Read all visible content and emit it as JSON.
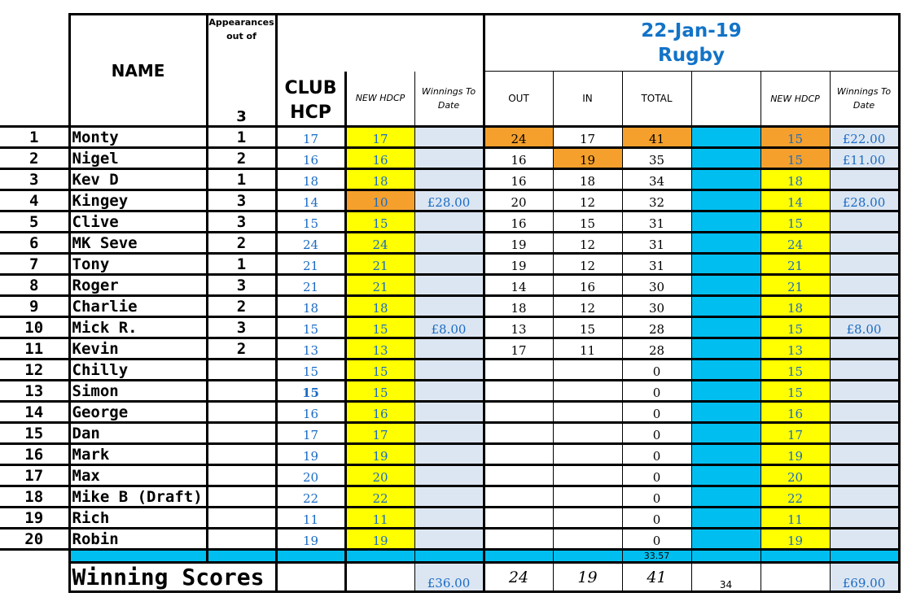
{
  "header": {
    "name_label": "NAME",
    "appearances_label": "Appearances out of",
    "appearances_total": "3",
    "club_hcp_label": "CLUB HCP",
    "new_hdcp_label": "NEW HDCP",
    "winnings_label": "Winnings To Date",
    "date": "22-Jan-19",
    "venue": "Rugby",
    "out_label": "OUT",
    "in_label": "IN",
    "total_label": "TOTAL",
    "new_hdcp_label2": "NEW HDCP",
    "winnings_label2": "Winnings To Date"
  },
  "rows": [
    {
      "n": "1",
      "name": "Monty",
      "app": "1",
      "club": "17",
      "new": "17",
      "win": "",
      "out": "24",
      "in": "17",
      "total": "41",
      "new2": "15",
      "win2": "£22.00"
    },
    {
      "n": "2",
      "name": "Nigel",
      "app": "2",
      "club": "16",
      "new": "16",
      "win": "",
      "out": "16",
      "in": "19",
      "total": "35",
      "new2": "15",
      "win2": "£11.00"
    },
    {
      "n": "3",
      "name": "Kev D",
      "app": "1",
      "club": "18",
      "new": "18",
      "win": "",
      "out": "16",
      "in": "18",
      "total": "34",
      "new2": "18",
      "win2": ""
    },
    {
      "n": "4",
      "name": "Kingey",
      "app": "3",
      "club": "14",
      "new": "10",
      "win": "£28.00",
      "out": "20",
      "in": "12",
      "total": "32",
      "new2": "14",
      "win2": "£28.00"
    },
    {
      "n": "5",
      "name": "Clive",
      "app": "3",
      "club": "15",
      "new": "15",
      "win": "",
      "out": "16",
      "in": "15",
      "total": "31",
      "new2": "15",
      "win2": ""
    },
    {
      "n": "6",
      "name": "MK Seve",
      "app": "2",
      "club": "24",
      "new": "24",
      "win": "",
      "out": "19",
      "in": "12",
      "total": "31",
      "new2": "24",
      "win2": ""
    },
    {
      "n": "7",
      "name": "Tony",
      "app": "1",
      "club": "21",
      "new": "21",
      "win": "",
      "out": "19",
      "in": "12",
      "total": "31",
      "new2": "21",
      "win2": ""
    },
    {
      "n": "8",
      "name": "Roger",
      "app": "3",
      "club": "21",
      "new": "21",
      "win": "",
      "out": "14",
      "in": "16",
      "total": "30",
      "new2": "21",
      "win2": ""
    },
    {
      "n": "9",
      "name": "Charlie",
      "app": "2",
      "club": "18",
      "new": "18",
      "win": "",
      "out": "18",
      "in": "12",
      "total": "30",
      "new2": "18",
      "win2": ""
    },
    {
      "n": "10",
      "name": "Mick R.",
      "app": "3",
      "club": "15",
      "new": "15",
      "win": "£8.00",
      "out": "13",
      "in": "15",
      "total": "28",
      "new2": "15",
      "win2": "£8.00"
    },
    {
      "n": "11",
      "name": "Kevin",
      "app": "2",
      "club": "13",
      "new": "13",
      "win": "",
      "out": "17",
      "in": "11",
      "total": "28",
      "new2": "13",
      "win2": ""
    },
    {
      "n": "12",
      "name": "Chilly",
      "app": "",
      "club": "15",
      "new": "15",
      "win": "",
      "out": "",
      "in": "",
      "total": "0",
      "new2": "15",
      "win2": ""
    },
    {
      "n": "13",
      "name": "Simon",
      "app": "",
      "club": "15",
      "new": "15",
      "win": "",
      "out": "",
      "in": "",
      "total": "0",
      "new2": "15",
      "win2": ""
    },
    {
      "n": "14",
      "name": "George",
      "app": "",
      "club": "16",
      "new": "16",
      "win": "",
      "out": "",
      "in": "",
      "total": "0",
      "new2": "16",
      "win2": ""
    },
    {
      "n": "15",
      "name": "Dan",
      "app": "",
      "club": "17",
      "new": "17",
      "win": "",
      "out": "",
      "in": "",
      "total": "0",
      "new2": "17",
      "win2": ""
    },
    {
      "n": "16",
      "name": "Mark",
      "app": "",
      "club": "19",
      "new": "19",
      "win": "",
      "out": "",
      "in": "",
      "total": "0",
      "new2": "19",
      "win2": ""
    },
    {
      "n": "17",
      "name": "Max",
      "app": "",
      "club": "20",
      "new": "20",
      "win": "",
      "out": "",
      "in": "",
      "total": "0",
      "new2": "20",
      "win2": ""
    },
    {
      "n": "18",
      "name": "Mike B (Draft)",
      "app": "",
      "club": "22",
      "new": "22",
      "win": "",
      "out": "",
      "in": "",
      "total": "0",
      "new2": "22",
      "win2": ""
    },
    {
      "n": "19",
      "name": "Rich",
      "app": "",
      "club": "11",
      "new": "11",
      "win": "",
      "out": "",
      "in": "",
      "total": "0",
      "new2": "11",
      "win2": ""
    },
    {
      "n": "20",
      "name": "Robin",
      "app": "",
      "club": "19",
      "new": "19",
      "win": "",
      "out": "",
      "in": "",
      "total": "0",
      "new2": "19",
      "win2": ""
    }
  ],
  "average_total": "33.57",
  "footer": {
    "label": "Winning Scores",
    "winnings": "£36.00",
    "out": "24",
    "in": "19",
    "total": "41",
    "extra": "34",
    "winnings2": "£69.00"
  },
  "colors": {
    "yellow": "#ffff00",
    "orange": "#f5a02c",
    "cyan": "#00bff0",
    "light_blue_grey": "#dce6f2",
    "blue_text": "#1a6bc4"
  }
}
